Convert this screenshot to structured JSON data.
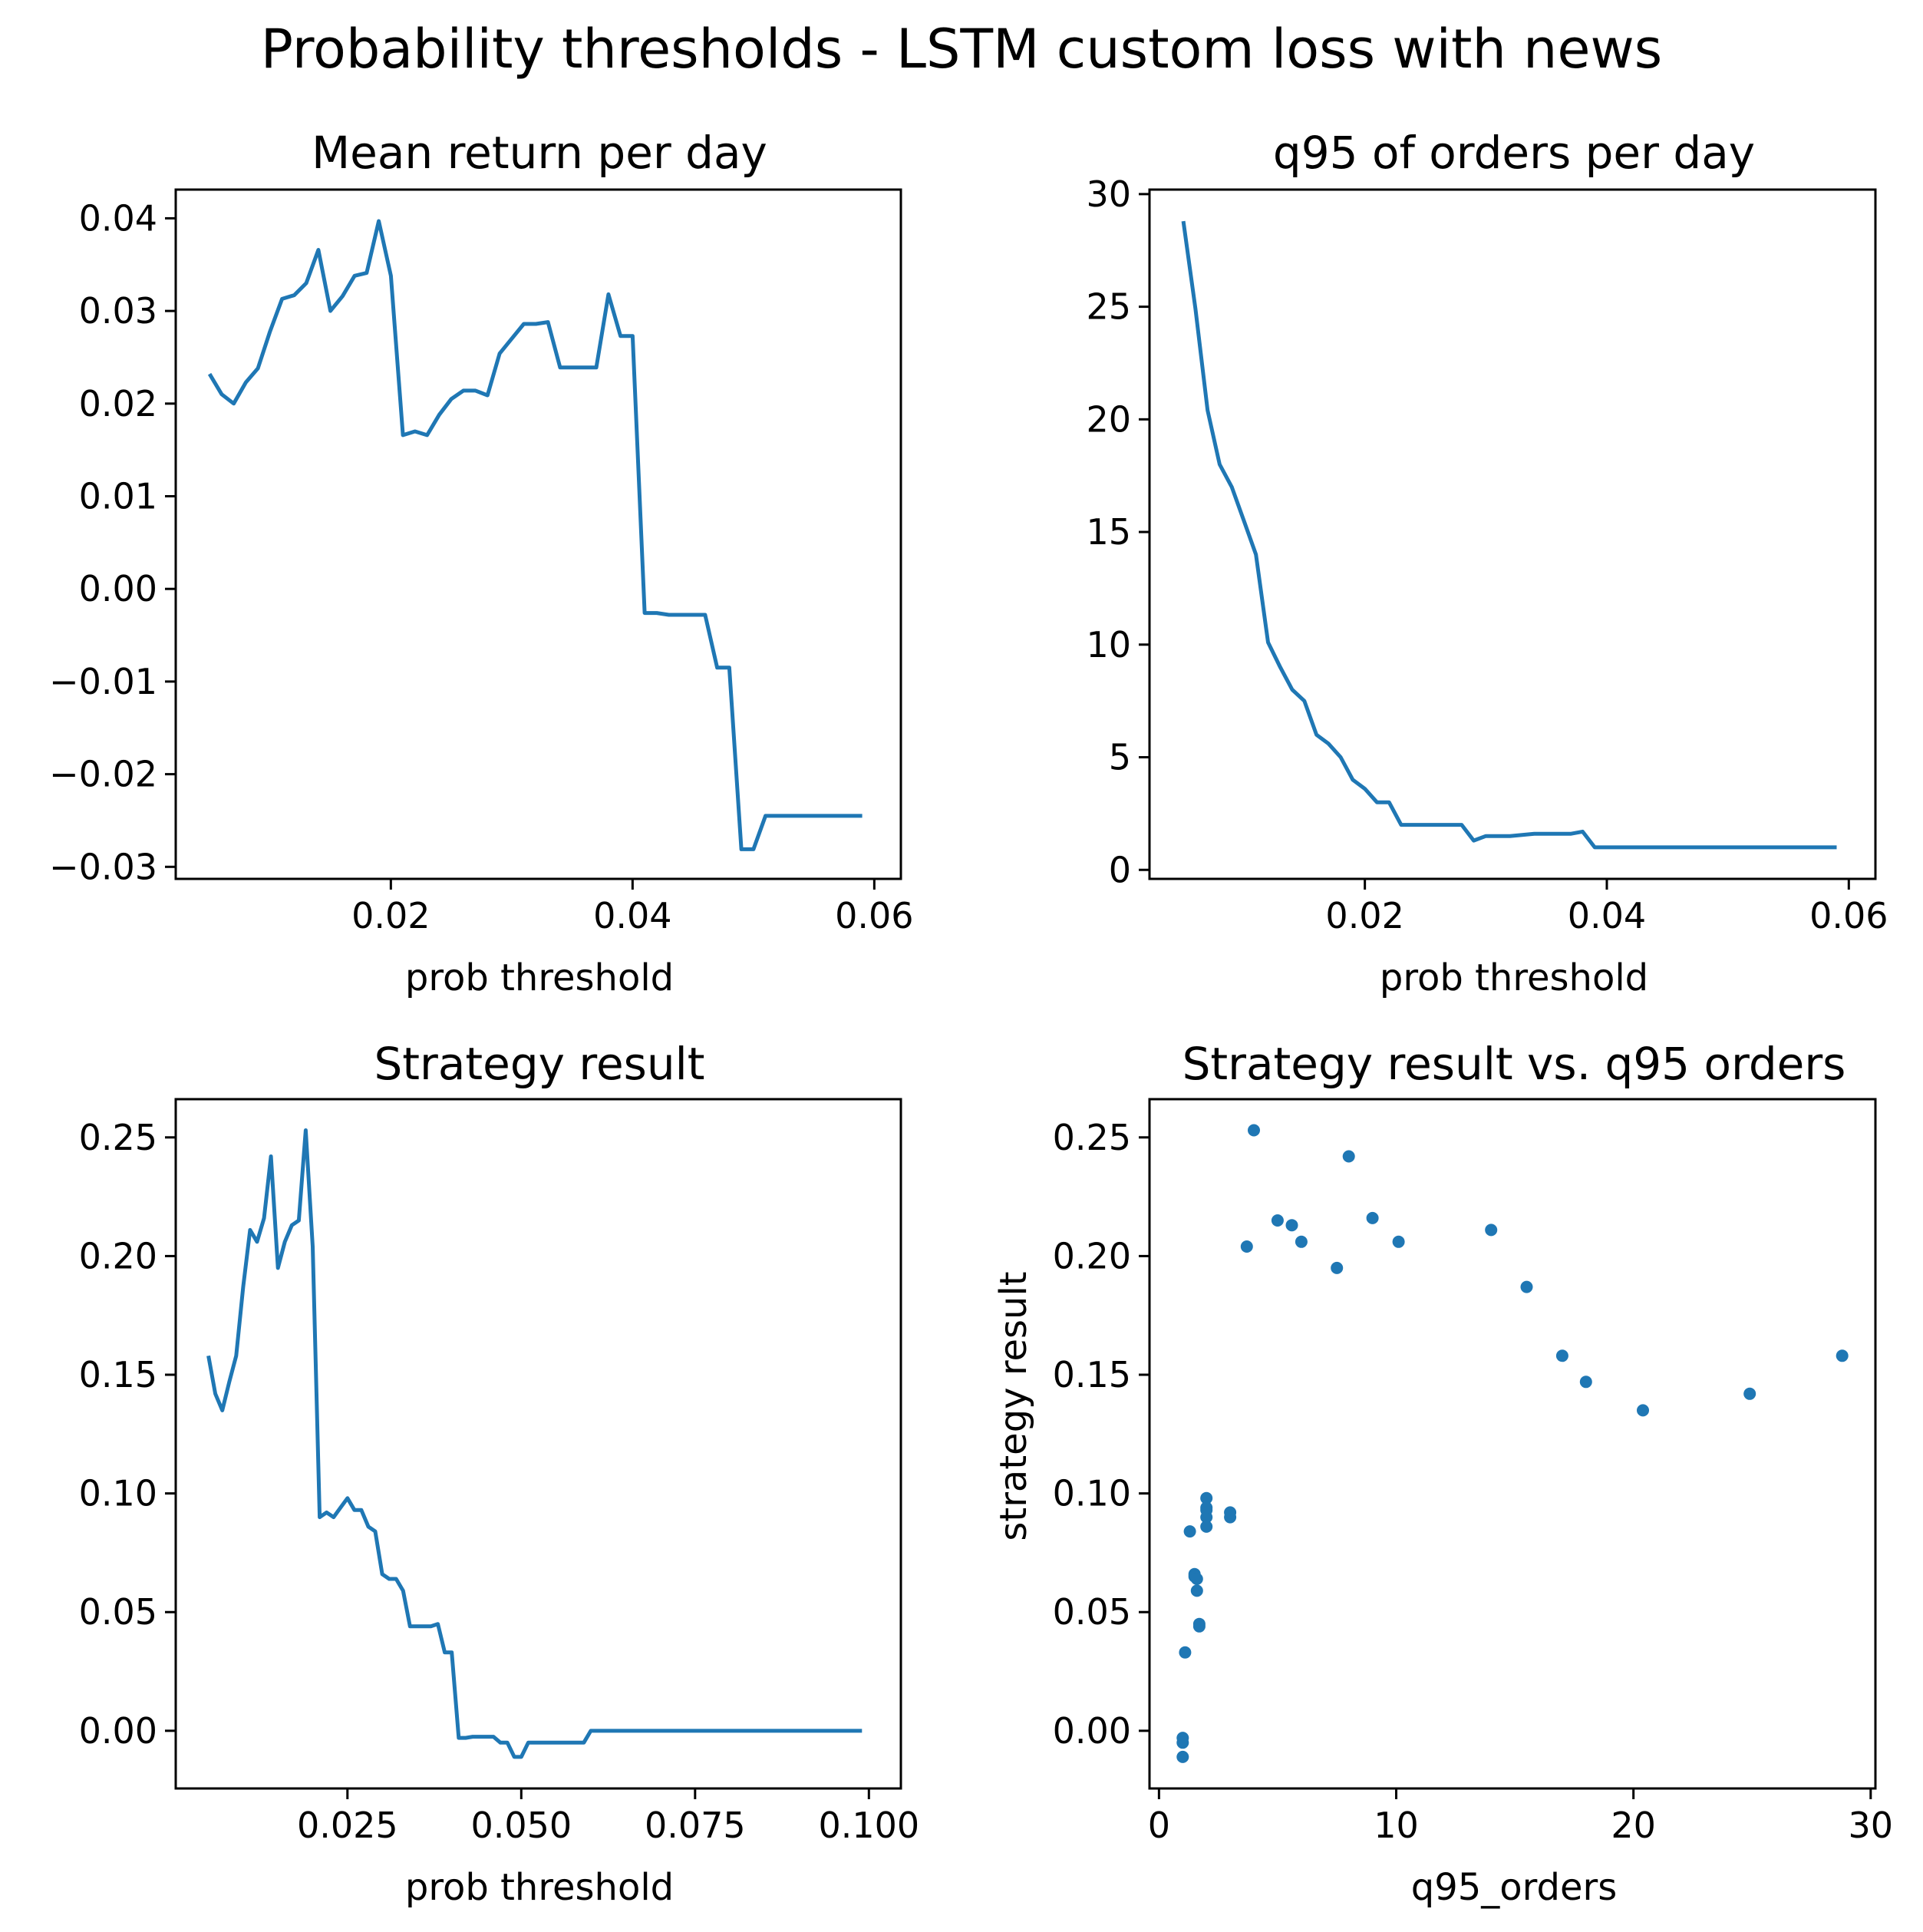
{
  "figure": {
    "title": "Probability thresholds - LSTM custom loss with news"
  },
  "colors": {
    "series": "#1f77b4",
    "axes": "#000000",
    "background": "#ffffff"
  },
  "chart_data": [
    {
      "id": "mean-return",
      "type": "line",
      "title": "Mean return per day",
      "xlabel": "prob threshold",
      "ylabel": "",
      "xlim": [
        0.0022,
        0.0622
      ],
      "ylim": [
        -0.0313,
        0.0431
      ],
      "xticks": [
        0.02,
        0.04,
        0.06
      ],
      "xtick_labels": [
        "0.02",
        "0.04",
        "0.06"
      ],
      "yticks": [
        0.04,
        0.03,
        0.02,
        0.01,
        0.0,
        -0.01,
        -0.02,
        -0.03
      ],
      "ytick_labels": [
        "0.04",
        "0.03",
        "0.02",
        "0.01",
        "0.00",
        "−0.01",
        "−0.02",
        "−0.03"
      ],
      "grid": false,
      "series": [
        {
          "x": [
            0.005,
            0.006,
            0.007,
            0.008,
            0.009,
            0.01,
            0.011,
            0.012,
            0.013,
            0.014,
            0.015,
            0.016,
            0.017,
            0.018,
            0.019,
            0.02,
            0.021,
            0.022,
            0.023,
            0.024,
            0.025,
            0.026,
            0.027,
            0.028,
            0.029,
            0.03,
            0.031,
            0.032,
            0.033,
            0.034,
            0.035,
            0.036,
            0.037,
            0.038,
            0.039,
            0.04,
            0.041,
            0.042,
            0.043,
            0.044,
            0.045,
            0.046,
            0.047,
            0.048,
            0.049,
            0.05,
            0.051,
            0.052,
            0.053,
            0.054,
            0.055,
            0.056,
            0.057,
            0.058,
            0.059
          ],
          "y": [
            0.0232,
            0.021,
            0.02,
            0.0223,
            0.0238,
            0.0278,
            0.0313,
            0.0317,
            0.033,
            0.0366,
            0.03,
            0.0316,
            0.0338,
            0.0341,
            0.0397,
            0.0338,
            0.0166,
            0.017,
            0.0166,
            0.0188,
            0.0205,
            0.0214,
            0.0214,
            0.0209,
            0.0254,
            0.027,
            0.0286,
            0.0286,
            0.0288,
            0.0239,
            0.0239,
            0.0239,
            0.0239,
            0.0318,
            0.0273,
            0.0273,
            -0.0026,
            -0.0026,
            -0.0028,
            -0.0028,
            -0.0028,
            -0.0028,
            -0.0085,
            -0.0085,
            -0.0281,
            -0.0281,
            -0.0245,
            -0.0245,
            -0.0245,
            -0.0245,
            -0.0245,
            -0.0245,
            -0.0245,
            -0.0245,
            -0.0245
          ]
        }
      ]
    },
    {
      "id": "q95-orders",
      "type": "line",
      "title": "q95 of orders per day",
      "xlabel": "prob threshold",
      "ylabel": "",
      "xlim": [
        0.0022,
        0.0622
      ],
      "ylim": [
        -0.4,
        30.2
      ],
      "xticks": [
        0.02,
        0.04,
        0.06
      ],
      "xtick_labels": [
        "0.02",
        "0.04",
        "0.06"
      ],
      "yticks": [
        30,
        25,
        20,
        15,
        10,
        5,
        0
      ],
      "ytick_labels": [
        "30",
        "25",
        "20",
        "15",
        "10",
        "5",
        "0"
      ],
      "grid": false,
      "series": [
        {
          "x": [
            0.005,
            0.006,
            0.007,
            0.008,
            0.009,
            0.01,
            0.011,
            0.012,
            0.013,
            0.014,
            0.015,
            0.016,
            0.017,
            0.018,
            0.019,
            0.02,
            0.021,
            0.022,
            0.023,
            0.024,
            0.025,
            0.026,
            0.027,
            0.028,
            0.029,
            0.03,
            0.031,
            0.032,
            0.033,
            0.034,
            0.035,
            0.036,
            0.037,
            0.038,
            0.039,
            0.04,
            0.041,
            0.042,
            0.043,
            0.044,
            0.045,
            0.046,
            0.047,
            0.048,
            0.049,
            0.05,
            0.051,
            0.052,
            0.053,
            0.054,
            0.055,
            0.056,
            0.057,
            0.058,
            0.059
          ],
          "y": [
            28.8,
            24.9,
            20.4,
            18.0,
            17.0,
            15.5,
            14.0,
            10.1,
            9.0,
            8.0,
            7.5,
            6.0,
            5.6,
            5.0,
            4.0,
            3.6,
            3.0,
            3.0,
            2.0,
            2.0,
            2.0,
            2.0,
            2.0,
            2.0,
            1.3,
            1.5,
            1.5,
            1.5,
            1.55,
            1.6,
            1.6,
            1.6,
            1.6,
            1.7,
            1.0,
            1.0,
            1.0,
            1.0,
            1.0,
            1.0,
            1.0,
            1.0,
            1.0,
            1.0,
            1.0,
            1.0,
            1.0,
            1.0,
            1.0,
            1.0,
            1.0,
            1.0,
            1.0,
            1.0,
            1.0
          ]
        }
      ]
    },
    {
      "id": "strategy-result",
      "type": "line",
      "title": "Strategy result",
      "xlabel": "prob threshold",
      "ylabel": "",
      "xlim": [
        0.0003,
        0.1046
      ],
      "ylim": [
        -0.0243,
        0.2661
      ],
      "xticks": [
        0.025,
        0.05,
        0.075,
        0.1
      ],
      "xtick_labels": [
        "0.025",
        "0.050",
        "0.075",
        "0.100"
      ],
      "yticks": [
        0.25,
        0.2,
        0.15,
        0.1,
        0.05,
        0.0
      ],
      "ytick_labels": [
        "0.25",
        "0.20",
        "0.15",
        "0.10",
        "0.05",
        "0.00"
      ],
      "grid": false,
      "series": [
        {
          "x": [
            0.005,
            0.006,
            0.007,
            0.008,
            0.009,
            0.01,
            0.011,
            0.012,
            0.013,
            0.014,
            0.015,
            0.016,
            0.017,
            0.018,
            0.019,
            0.02,
            0.021,
            0.022,
            0.023,
            0.024,
            0.025,
            0.026,
            0.027,
            0.028,
            0.029,
            0.03,
            0.031,
            0.032,
            0.033,
            0.034,
            0.035,
            0.036,
            0.037,
            0.038,
            0.039,
            0.04,
            0.041,
            0.042,
            0.043,
            0.044,
            0.045,
            0.046,
            0.047,
            0.048,
            0.049,
            0.05,
            0.051,
            0.052,
            0.053,
            0.054,
            0.055,
            0.056,
            0.057,
            0.058,
            0.059,
            0.06,
            0.099
          ],
          "y": [
            0.158,
            0.142,
            0.135,
            0.147,
            0.158,
            0.187,
            0.211,
            0.206,
            0.216,
            0.242,
            0.195,
            0.206,
            0.213,
            0.215,
            0.253,
            0.204,
            0.09,
            0.092,
            0.09,
            0.094,
            0.098,
            0.093,
            0.093,
            0.086,
            0.084,
            0.066,
            0.064,
            0.064,
            0.059,
            0.044,
            0.044,
            0.044,
            0.044,
            0.045,
            0.033,
            0.033,
            -0.003,
            -0.003,
            -0.0025,
            -0.0025,
            -0.0025,
            -0.0025,
            -0.005,
            -0.005,
            -0.011,
            -0.011,
            -0.005,
            -0.005,
            -0.005,
            -0.005,
            -0.005,
            -0.005,
            -0.005,
            -0.005,
            -0.005,
            0.0,
            0.0
          ]
        }
      ]
    },
    {
      "id": "strategy-vs-q95",
      "type": "scatter",
      "title": "Strategy result vs. q95 orders",
      "xlabel": "q95_orders",
      "ylabel": "strategy result",
      "xlim": [
        -0.4,
        30.2
      ],
      "ylim": [
        -0.0243,
        0.2661
      ],
      "xticks": [
        0,
        10,
        20,
        30
      ],
      "xtick_labels": [
        "0",
        "10",
        "20",
        "30"
      ],
      "yticks": [
        0.25,
        0.2,
        0.15,
        0.1,
        0.05,
        0.0
      ],
      "ytick_labels": [
        "0.25",
        "0.20",
        "0.15",
        "0.10",
        "0.05",
        "0.00"
      ],
      "grid": false,
      "series": [
        {
          "x": [
            28.8,
            24.9,
            20.4,
            18.0,
            17.0,
            15.5,
            14.0,
            10.1,
            9.0,
            8.0,
            7.5,
            6.0,
            5.6,
            5.0,
            4.0,
            3.7,
            3.0,
            3.0,
            2.0,
            2.0,
            2.0,
            2.0,
            2.0,
            1.3,
            1.5,
            1.5,
            1.6,
            1.6,
            1.7,
            1.7,
            1.1,
            1.0,
            1.0,
            1.0
          ],
          "y": [
            0.158,
            0.142,
            0.135,
            0.147,
            0.158,
            0.187,
            0.211,
            0.206,
            0.216,
            0.242,
            0.195,
            0.206,
            0.213,
            0.215,
            0.253,
            0.204,
            0.09,
            0.092,
            0.098,
            0.093,
            0.09,
            0.086,
            0.094,
            0.084,
            0.066,
            0.065,
            0.059,
            0.064,
            0.044,
            0.045,
            0.033,
            -0.003,
            -0.005,
            -0.011
          ]
        }
      ]
    }
  ]
}
